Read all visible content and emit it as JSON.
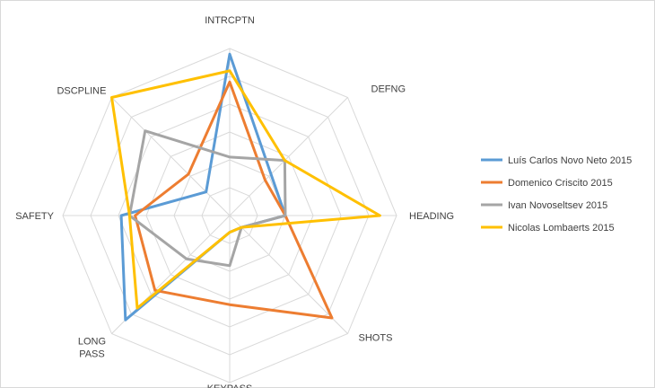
{
  "chart_data": {
    "type": "radar",
    "axes": [
      {
        "label": "INTRCPTN"
      },
      {
        "label": "DEFNG"
      },
      {
        "label": "HEADING"
      },
      {
        "label": "SHOTS"
      },
      {
        "label": "KEYPASS"
      },
      {
        "label": "LONG\nPASS"
      },
      {
        "label": "SAFETY"
      },
      {
        "label": "DSCPLINE"
      }
    ],
    "rlim": [
      0,
      6
    ],
    "rings": 6,
    "grid": true,
    "legend_position": "right",
    "series": [
      {
        "name": "Luís Carlos Novo Neto 2015",
        "color": "#5b9bd5",
        "values": [
          5.8,
          2.1,
          2.0,
          0.6,
          0.6,
          5.3,
          3.9,
          1.2
        ]
      },
      {
        "name": "Domenico Criscito 2015",
        "color": "#ed7d31",
        "values": [
          4.8,
          1.8,
          2.0,
          5.2,
          3.2,
          3.8,
          3.4,
          2.1
        ]
      },
      {
        "name": "Ivan Novoseltsev 2015",
        "color": "#a5a5a5",
        "values": [
          2.1,
          2.8,
          2.0,
          0.6,
          1.8,
          2.2,
          3.6,
          4.3
        ]
      },
      {
        "name": "Nicolas Lombaerts 2015",
        "color": "#ffc000",
        "values": [
          5.2,
          2.8,
          5.4,
          0.6,
          0.6,
          4.7,
          3.6,
          6.0
        ]
      }
    ]
  }
}
